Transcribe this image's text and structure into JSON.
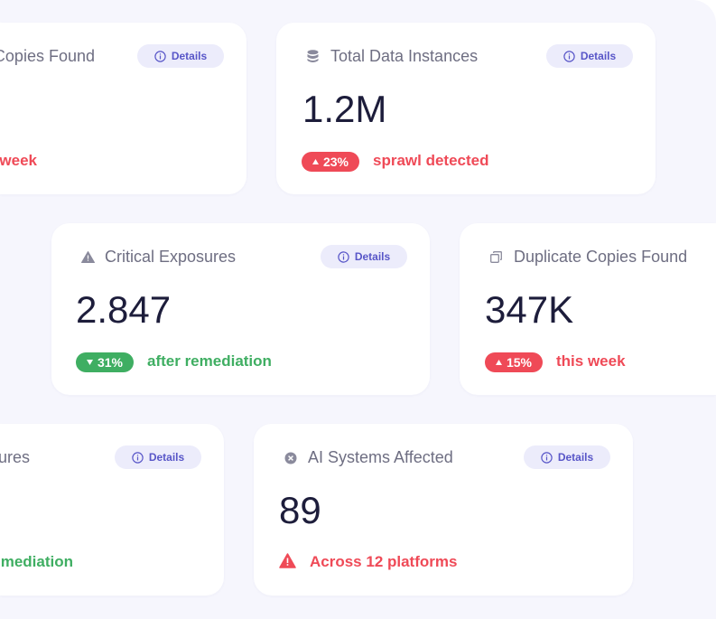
{
  "cards": [
    {
      "title": "Copies Found",
      "button": "Details",
      "note": "week"
    },
    {
      "title": "Total Data Instances",
      "button": "Details",
      "value": "1.2M",
      "badge": "23%",
      "note": "sprawl detected"
    },
    {
      "title": "Critical Exposures",
      "button": "Details",
      "value": "2.847",
      "badge": "31%",
      "note": "after remediation"
    },
    {
      "title": "Duplicate Copies Found",
      "value": "347K",
      "badge": "15%",
      "note": "this week"
    },
    {
      "title": "ures",
      "button": "Details",
      "note": "mediation"
    },
    {
      "title": "AI Systems Affected",
      "button": "Details",
      "value": "89",
      "note": "Across 12 platforms"
    }
  ]
}
